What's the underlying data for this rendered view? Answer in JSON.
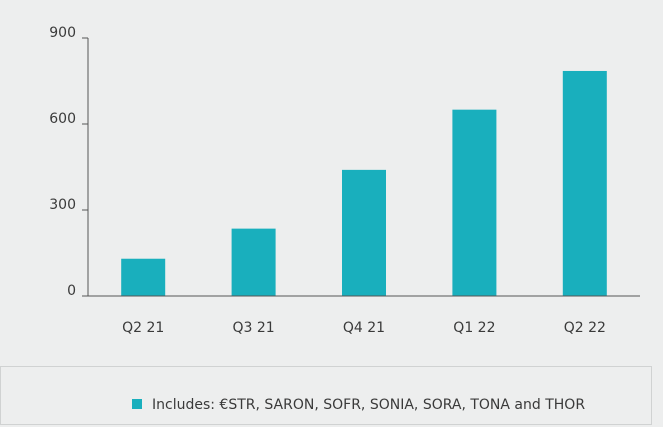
{
  "chart_data": {
    "type": "bar",
    "categories": [
      "Q2 21",
      "Q3 21",
      "Q4 21",
      "Q1 22",
      "Q2 22"
    ],
    "series": [
      {
        "name": "Includes: €STR, SARON, SOFR, SONIA, SORA, TONA and THOR",
        "color": "#19afbd",
        "values": [
          130,
          235,
          440,
          650,
          785
        ]
      }
    ],
    "ylim": [
      0,
      900
    ],
    "yticks": [
      0,
      300,
      600,
      900
    ]
  }
}
